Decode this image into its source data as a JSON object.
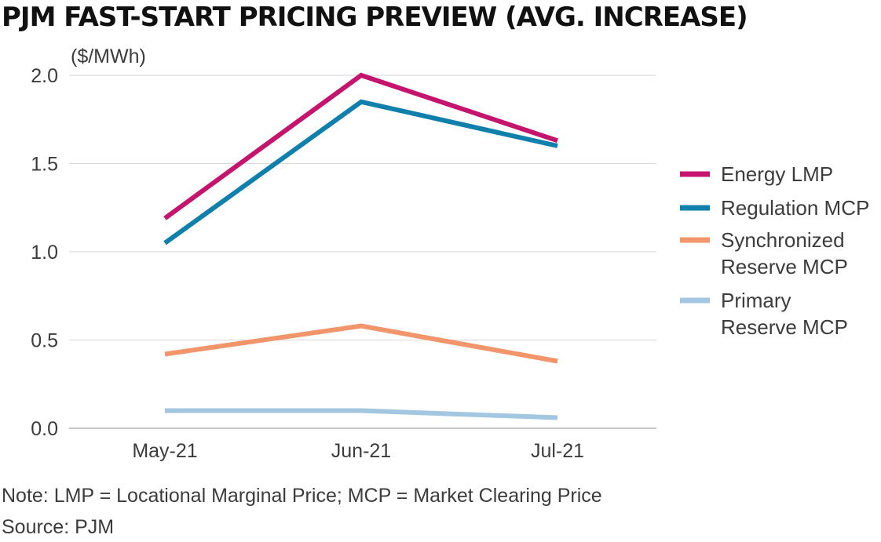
{
  "title": "PJM FAST-START PRICING PREVIEW (AVG. INCREASE)",
  "note": "Note: LMP = Locational Marginal Price; MCP = Market Clearing Price",
  "source": "Source: PJM",
  "chart_data": {
    "type": "line",
    "title": "PJM FAST-START PRICING PREVIEW (AVG. INCREASE)",
    "ylabel": "($/MWh)",
    "xlabel": "",
    "categories": [
      "May-21",
      "Jun-21",
      "Jul-21"
    ],
    "ylim": [
      0,
      2.0
    ],
    "yticks": [
      0.0,
      0.5,
      1.0,
      1.5,
      2.0
    ],
    "ytick_labels": [
      "0.0",
      "0.5",
      "1.0",
      "1.5",
      "2.0"
    ],
    "grid": true,
    "legend_position": "right",
    "series": [
      {
        "name": "Energy LMP",
        "legend_lines": [
          "Energy LMP"
        ],
        "color": "#c4146e",
        "values": [
          1.19,
          2.0,
          1.63
        ]
      },
      {
        "name": "Regulation MCP",
        "legend_lines": [
          "Regulation MCP"
        ],
        "color": "#0f7fac",
        "values": [
          1.05,
          1.85,
          1.6
        ]
      },
      {
        "name": "Synchronized Reserve MCP",
        "legend_lines": [
          "Synchronized",
          "Reserve MCP"
        ],
        "color": "#f2956a",
        "values": [
          0.42,
          0.58,
          0.38
        ]
      },
      {
        "name": "Primary Reserve MCP",
        "legend_lines": [
          "Primary",
          "Reserve MCP"
        ],
        "color": "#a3c7e0",
        "values": [
          0.1,
          0.1,
          0.06
        ]
      }
    ]
  }
}
